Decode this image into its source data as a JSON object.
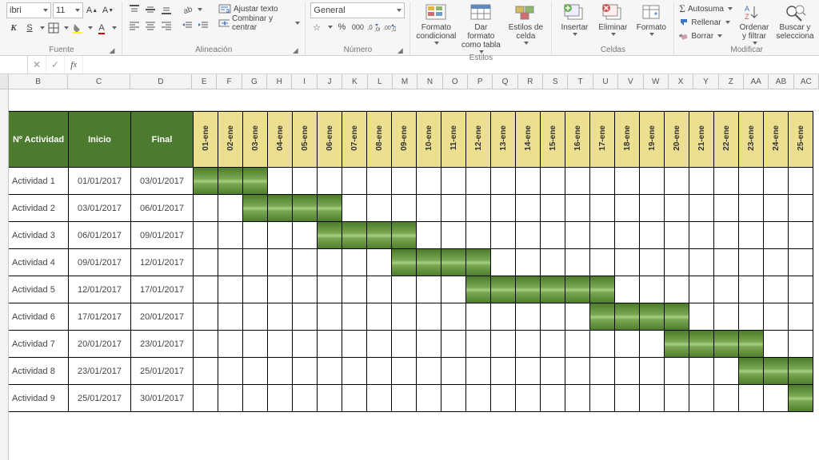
{
  "ribbon": {
    "font": {
      "name": "ibri",
      "size": "11",
      "group_label": "Fuente"
    },
    "align": {
      "wrap": "Ajustar texto",
      "merge": "Combinar y centrar",
      "group_label": "Alineación"
    },
    "number": {
      "format": "General",
      "group_label": "Número"
    },
    "styles": {
      "cond": "Formato\ncondicional",
      "table": "Dar formato\ncomo tabla",
      "cell": "Estilos de\ncelda",
      "group_label": "Estilos"
    },
    "cells": {
      "insert": "Insertar",
      "delete": "Eliminar",
      "format": "Formato",
      "group_label": "Celdas"
    },
    "edit": {
      "autosum": "Autosuma",
      "fill": "Rellenar",
      "clear": "Borrar",
      "sort": "Ordenar\ny filtrar",
      "find": "Buscar y\nselecciona",
      "group_label": "Modificar"
    }
  },
  "columns": [
    "B",
    "C",
    "D",
    "E",
    "F",
    "G",
    "H",
    "I",
    "J",
    "K",
    "L",
    "M",
    "N",
    "O",
    "P",
    "Q",
    "R",
    "S",
    "T",
    "U",
    "V",
    "W",
    "X",
    "Y",
    "Z",
    "AA",
    "AB",
    "AC"
  ],
  "gantt": {
    "headers": {
      "activity": "Nº Actividad",
      "start": "Inicio",
      "end": "Final"
    },
    "header_bg": "#4c7a2e",
    "header_fg": "#ffffff",
    "day_hdr_bg": "#ecdf90",
    "bar_gradient": [
      "#4d7c2d",
      "#79a751",
      "#a7cf86",
      "#79a751",
      "#4d7c2d"
    ],
    "day_labels": [
      "01-ene",
      "02-ene",
      "03-ene",
      "04-ene",
      "05-ene",
      "06-ene",
      "07-ene",
      "08-ene",
      "09-ene",
      "10-ene",
      "11-ene",
      "12-ene",
      "13-ene",
      "14-ene",
      "15-ene",
      "16-ene",
      "17-ene",
      "18-ene",
      "19-ene",
      "20-ene",
      "21-ene",
      "22-ene",
      "23-ene",
      "24-ene",
      "25-ene"
    ],
    "rows": [
      {
        "name": "Actividad 1",
        "start": "01/01/2017",
        "end": "03/01/2017",
        "from": 1,
        "to": 3
      },
      {
        "name": "Actividad 2",
        "start": "03/01/2017",
        "end": "06/01/2017",
        "from": 3,
        "to": 6
      },
      {
        "name": "Actividad 3",
        "start": "06/01/2017",
        "end": "09/01/2017",
        "from": 6,
        "to": 9
      },
      {
        "name": "Actividad 4",
        "start": "09/01/2017",
        "end": "12/01/2017",
        "from": 9,
        "to": 12
      },
      {
        "name": "Actividad 5",
        "start": "12/01/2017",
        "end": "17/01/2017",
        "from": 12,
        "to": 17
      },
      {
        "name": "Actividad 6",
        "start": "17/01/2017",
        "end": "20/01/2017",
        "from": 17,
        "to": 20
      },
      {
        "name": "Actividad 7",
        "start": "20/01/2017",
        "end": "23/01/2017",
        "from": 20,
        "to": 23
      },
      {
        "name": "Actividad 8",
        "start": "23/01/2017",
        "end": "25/01/2017",
        "from": 23,
        "to": 25
      },
      {
        "name": "Actividad 9",
        "start": "25/01/2017",
        "end": "30/01/2017",
        "from": 25,
        "to": 25
      }
    ]
  }
}
